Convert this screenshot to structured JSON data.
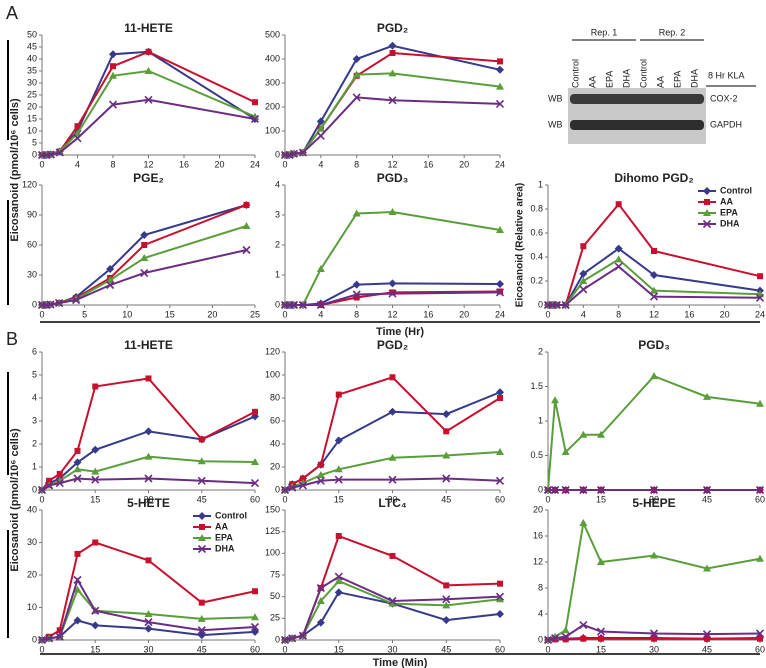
{
  "panels": [
    {
      "label": "A",
      "y_label": "Eicosanoid (pmol/10⁶ cells)",
      "x_label": "Time (Hr)"
    },
    {
      "label": "B",
      "y_label": "Eicosanoid (pmol/10⁶ cells)",
      "x_label": "Time (Min)"
    }
  ],
  "blot": {
    "reps": [
      "Rep. 1",
      "Rep. 2"
    ],
    "lanes": [
      "Control",
      "AA",
      "EPA",
      "DHA",
      "Control",
      "AA",
      "EPA",
      "DHA"
    ],
    "treatment": "8 Hr KLA",
    "rows": [
      {
        "method": "WB",
        "protein": "COX-2"
      },
      {
        "method": "WB",
        "protein": "GAPDH"
      }
    ]
  },
  "chart_data": [
    {
      "type": "line",
      "title": "11-HETE",
      "x": [
        0,
        0.5,
        1,
        2,
        4,
        8,
        12,
        24
      ],
      "xlim": [
        0,
        24
      ],
      "xticks": [
        0,
        4,
        8,
        12,
        16,
        20,
        24
      ],
      "ylim": [
        0,
        50
      ],
      "yticks": [
        0,
        5,
        10,
        15,
        20,
        25,
        30,
        35,
        40,
        45,
        50
      ],
      "series": [
        {
          "color": "#36398c",
          "marker": "diamond",
          "values": [
            0,
            0,
            0.3,
            1.5,
            10,
            42,
            43,
            15
          ]
        },
        {
          "color": "#c8102e",
          "marker": "square",
          "values": [
            0,
            0,
            0.3,
            1.5,
            12,
            37,
            43,
            22
          ]
        },
        {
          "color": "#5a9e3a",
          "marker": "triangle",
          "values": [
            0,
            0,
            0.3,
            1.5,
            9,
            33,
            35,
            16
          ]
        },
        {
          "color": "#6b2d84",
          "marker": "x",
          "values": [
            0,
            0,
            0.2,
            1,
            7,
            21,
            23,
            15
          ]
        }
      ]
    },
    {
      "type": "line",
      "title": "PGD₂",
      "x": [
        0,
        0.5,
        1,
        2,
        4,
        8,
        12,
        24
      ],
      "xlim": [
        0,
        24
      ],
      "xticks": [
        0,
        4,
        8,
        12,
        16,
        20,
        24
      ],
      "ylim": [
        0,
        500
      ],
      "yticks": [
        0,
        100,
        200,
        300,
        400,
        500
      ],
      "series": [
        {
          "color": "#36398c",
          "marker": "diamond",
          "values": [
            0,
            0,
            5,
            10,
            140,
            400,
            455,
            355
          ]
        },
        {
          "color": "#c8102e",
          "marker": "square",
          "values": [
            0,
            0,
            5,
            10,
            110,
            330,
            425,
            390
          ]
        },
        {
          "color": "#5a9e3a",
          "marker": "triangle",
          "values": [
            0,
            0,
            5,
            10,
            110,
            335,
            340,
            285
          ]
        },
        {
          "color": "#6b2d84",
          "marker": "x",
          "values": [
            0,
            0,
            5,
            10,
            80,
            240,
            228,
            213
          ]
        }
      ]
    },
    {
      "type": "line",
      "title": "PGE₂",
      "x": [
        0,
        0.5,
        1,
        2,
        4,
        8,
        12,
        24
      ],
      "xlim": [
        0,
        25
      ],
      "xticks": [
        0,
        5,
        10,
        15,
        20,
        25
      ],
      "ylim": [
        0,
        120
      ],
      "yticks": [
        0,
        30,
        60,
        90,
        120
      ],
      "series": [
        {
          "color": "#36398c",
          "marker": "diamond",
          "values": [
            0,
            0,
            0.5,
            2,
            8,
            36,
            70,
            100
          ]
        },
        {
          "color": "#c8102e",
          "marker": "square",
          "values": [
            0,
            0,
            0.5,
            2,
            7,
            27,
            60,
            100
          ]
        },
        {
          "color": "#5a9e3a",
          "marker": "triangle",
          "values": [
            0,
            0,
            0.5,
            2,
            6,
            25,
            47,
            79
          ]
        },
        {
          "color": "#6b2d84",
          "marker": "x",
          "values": [
            0,
            0,
            0.5,
            2,
            5,
            20,
            32,
            55
          ]
        }
      ]
    },
    {
      "type": "line",
      "title": "PGD₃",
      "x": [
        0,
        0.5,
        1,
        2,
        4,
        8,
        12,
        24
      ],
      "xlim": [
        0,
        24
      ],
      "xticks": [
        0,
        4,
        8,
        12,
        16,
        20,
        24
      ],
      "ylim": [
        0,
        4
      ],
      "yticks": [
        0,
        1,
        2,
        3,
        4
      ],
      "series": [
        {
          "color": "#36398c",
          "marker": "diamond",
          "values": [
            0,
            0,
            0,
            0,
            0.05,
            0.68,
            0.72,
            0.7
          ]
        },
        {
          "color": "#c8102e",
          "marker": "square",
          "values": [
            0,
            0,
            0,
            0,
            0,
            0.25,
            0.42,
            0.45
          ]
        },
        {
          "color": "#5a9e3a",
          "marker": "triangle",
          "values": [
            0,
            0,
            0,
            0,
            1.2,
            3.05,
            3.1,
            2.5
          ]
        },
        {
          "color": "#6b2d84",
          "marker": "x",
          "values": [
            0,
            0,
            0,
            0,
            0,
            0.35,
            0.38,
            0.42
          ]
        }
      ]
    },
    {
      "type": "line",
      "title": "Dihomo PGD₂",
      "y_label": "Eicosanoid (Relative area)",
      "legend": "upper right",
      "x": [
        0,
        0.5,
        1,
        2,
        4,
        8,
        12,
        24
      ],
      "xlim": [
        0,
        24
      ],
      "xticks": [
        0,
        4,
        8,
        12,
        16,
        20,
        24
      ],
      "ylim": [
        0,
        1
      ],
      "yticks": [
        0,
        0.2,
        0.4,
        0.6,
        0.8,
        1
      ],
      "series": [
        {
          "name": "Control",
          "color": "#36398c",
          "marker": "diamond",
          "values": [
            0,
            0,
            0,
            0,
            0.26,
            0.47,
            0.25,
            0.12
          ]
        },
        {
          "name": "AA",
          "color": "#c8102e",
          "marker": "square",
          "values": [
            0,
            0,
            0,
            0,
            0.49,
            0.84,
            0.45,
            0.24
          ]
        },
        {
          "name": "EPA",
          "color": "#5a9e3a",
          "marker": "triangle",
          "values": [
            0,
            0,
            0,
            0,
            0.2,
            0.38,
            0.12,
            0.09
          ]
        },
        {
          "name": "DHA",
          "color": "#6b2d84",
          "marker": "x",
          "values": [
            0,
            0,
            0,
            0,
            0.13,
            0.32,
            0.07,
            0.06
          ]
        }
      ]
    },
    {
      "type": "line",
      "title": "11-HETE",
      "x": [
        0,
        2,
        5,
        10,
        15,
        30,
        45,
        60
      ],
      "xlim": [
        0,
        60
      ],
      "xticks": [
        0,
        15,
        30,
        45,
        60
      ],
      "ylim": [
        0,
        6
      ],
      "yticks": [
        0,
        1,
        2,
        3,
        4,
        5,
        6
      ],
      "series": [
        {
          "color": "#36398c",
          "marker": "diamond",
          "values": [
            0,
            0.3,
            0.5,
            1.2,
            1.75,
            2.55,
            2.2,
            3.2
          ]
        },
        {
          "color": "#c8102e",
          "marker": "square",
          "values": [
            0,
            0.4,
            0.7,
            1.7,
            4.5,
            4.85,
            2.2,
            3.4
          ]
        },
        {
          "color": "#5a9e3a",
          "marker": "triangle",
          "values": [
            0,
            0.2,
            0.4,
            0.9,
            0.8,
            1.45,
            1.25,
            1.22
          ]
        },
        {
          "color": "#6b2d84",
          "marker": "x",
          "values": [
            0,
            0.2,
            0.3,
            0.5,
            0.45,
            0.5,
            0.4,
            0.3
          ]
        }
      ]
    },
    {
      "type": "line",
      "title": "PGD₂",
      "x": [
        0,
        2,
        5,
        10,
        15,
        30,
        45,
        60
      ],
      "xlim": [
        0,
        60
      ],
      "xticks": [
        0,
        15,
        30,
        45,
        60
      ],
      "ylim": [
        0,
        120
      ],
      "yticks": [
        0,
        20,
        40,
        60,
        80,
        100,
        120
      ],
      "series": [
        {
          "color": "#36398c",
          "marker": "diamond",
          "values": [
            0,
            5,
            10,
            22,
            43,
            68,
            66,
            85
          ]
        },
        {
          "color": "#c8102e",
          "marker": "square",
          "values": [
            0,
            5,
            10,
            22,
            83,
            98,
            51,
            80
          ]
        },
        {
          "color": "#5a9e3a",
          "marker": "triangle",
          "values": [
            0,
            3,
            6,
            13,
            18,
            28,
            30,
            33
          ]
        },
        {
          "color": "#6b2d84",
          "marker": "x",
          "values": [
            0,
            2,
            4,
            8,
            9,
            9,
            10,
            8
          ]
        }
      ]
    },
    {
      "type": "line",
      "title": "PGD₃",
      "x": [
        0,
        2,
        5,
        10,
        15,
        30,
        45,
        60
      ],
      "xlim": [
        0,
        60
      ],
      "xticks": [
        0,
        15,
        30,
        45,
        60
      ],
      "ylim": [
        0,
        2
      ],
      "yticks": [
        0,
        0.5,
        1,
        1.5,
        2
      ],
      "series": [
        {
          "color": "#36398c",
          "marker": "diamond",
          "values": [
            0,
            0,
            0,
            0,
            0,
            0,
            0,
            0
          ]
        },
        {
          "color": "#c8102e",
          "marker": "square",
          "values": [
            0,
            0,
            0,
            0,
            0,
            0,
            0,
            0
          ]
        },
        {
          "color": "#5a9e3a",
          "marker": "triangle",
          "values": [
            0,
            1.3,
            0.55,
            0.8,
            0.8,
            1.65,
            1.35,
            1.25
          ]
        },
        {
          "color": "#6b2d84",
          "marker": "x",
          "values": [
            0,
            0,
            0,
            0,
            0,
            0,
            0,
            0
          ]
        }
      ]
    },
    {
      "type": "line",
      "title": "5-HETE",
      "legend": "upper right",
      "x": [
        0,
        2,
        5,
        10,
        15,
        30,
        45,
        60
      ],
      "xlim": [
        0,
        60
      ],
      "xticks": [
        0,
        15,
        30,
        45,
        60
      ],
      "ylim": [
        0,
        40
      ],
      "yticks": [
        0,
        10,
        20,
        30,
        40
      ],
      "series": [
        {
          "name": "Control",
          "color": "#36398c",
          "marker": "diamond",
          "values": [
            0,
            0.5,
            1,
            6,
            4.5,
            3.5,
            1.5,
            2.5
          ]
        },
        {
          "name": "AA",
          "color": "#c8102e",
          "marker": "square",
          "values": [
            0,
            1,
            3,
            26.5,
            30,
            24.5,
            11.5,
            15
          ]
        },
        {
          "name": "EPA",
          "color": "#5a9e3a",
          "marker": "triangle",
          "values": [
            0,
            0.5,
            1,
            15.5,
            9,
            8,
            6.5,
            7
          ]
        },
        {
          "name": "DHA",
          "color": "#6b2d84",
          "marker": "x",
          "values": [
            0,
            0.5,
            1,
            18.5,
            9,
            5.5,
            3,
            4
          ]
        }
      ]
    },
    {
      "type": "line",
      "title": "LTC₄",
      "x": [
        0,
        2,
        5,
        10,
        15,
        30,
        45,
        60
      ],
      "xlim": [
        0,
        60
      ],
      "xticks": [
        0,
        15,
        30,
        45,
        60
      ],
      "ylim": [
        0,
        150
      ],
      "yticks": [
        0,
        25,
        50,
        75,
        100,
        125,
        150
      ],
      "series": [
        {
          "color": "#36398c",
          "marker": "diamond",
          "values": [
            0,
            2,
            5,
            20,
            55,
            42,
            23,
            30
          ]
        },
        {
          "color": "#c8102e",
          "marker": "square",
          "values": [
            0,
            2,
            5,
            60,
            120,
            97,
            63,
            65
          ]
        },
        {
          "color": "#5a9e3a",
          "marker": "triangle",
          "values": [
            0,
            2,
            5,
            45,
            68,
            42,
            40,
            47
          ]
        },
        {
          "color": "#6b2d84",
          "marker": "x",
          "values": [
            0,
            2,
            5,
            60,
            73,
            45,
            47,
            50
          ]
        }
      ]
    },
    {
      "type": "line",
      "title": "5-HEPE",
      "x": [
        0,
        2,
        5,
        10,
        15,
        30,
        45,
        60
      ],
      "xlim": [
        0,
        60
      ],
      "xticks": [
        0,
        15,
        30,
        45,
        60
      ],
      "ylim": [
        0,
        20
      ],
      "yticks": [
        0,
        4,
        8,
        12,
        16,
        20
      ],
      "series": [
        {
          "color": "#36398c",
          "marker": "diamond",
          "values": [
            0,
            0.2,
            0.2,
            0.3,
            0.3,
            0.3,
            0.2,
            0.3
          ]
        },
        {
          "color": "#c8102e",
          "marker": "square",
          "values": [
            0,
            0.1,
            0.1,
            0.2,
            0.2,
            0.2,
            0.2,
            0.2
          ]
        },
        {
          "color": "#5a9e3a",
          "marker": "triangle",
          "values": [
            0,
            0.5,
            1.5,
            18,
            12,
            13,
            11,
            12.5
          ]
        },
        {
          "color": "#6b2d84",
          "marker": "x",
          "values": [
            0,
            0.3,
            0.5,
            2.3,
            1.3,
            1,
            0.9,
            1
          ]
        }
      ]
    }
  ]
}
